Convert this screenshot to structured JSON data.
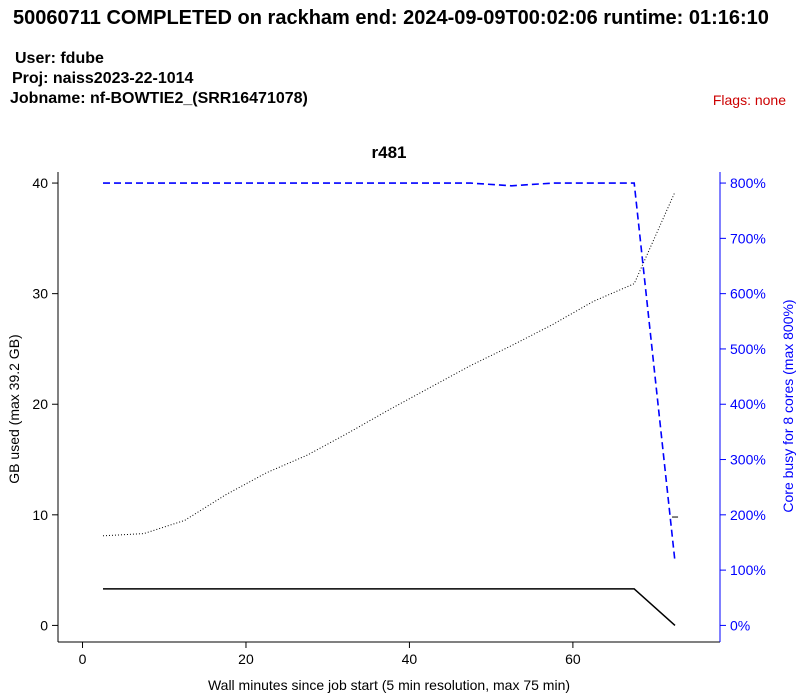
{
  "header": {
    "title": "50060711 COMPLETED on rackham  end: 2024-09-09T00:02:06  runtime: 01:16:10",
    "user": "User: fdube",
    "proj": "Proj: naiss2023-22-1014",
    "jobname": "Jobname: nf-BOWTIE2_(SRR16471078)",
    "flags": "Flags: none"
  },
  "colors": {
    "flags": "#cc0000",
    "cores": "#0000ff",
    "memory": "#000000",
    "max_memory": "#000000"
  },
  "chart_data": {
    "type": "line",
    "title": "r481",
    "xlabel": "Wall minutes since job start (5 min resolution, max 75 min)",
    "ylabel": "GB used (max 39.2 GB)",
    "y2label": "Core busy for 8 cores (max 800%)",
    "xlim": [
      -3,
      78
    ],
    "ylim": [
      -1.5,
      41
    ],
    "y2lim": [
      -30,
      820
    ],
    "xticks": [
      0,
      20,
      40,
      60
    ],
    "yticks": [
      0,
      10,
      20,
      30,
      40
    ],
    "y2ticks": [
      "0%",
      "100%",
      "200%",
      "300%",
      "400%",
      "500%",
      "600%",
      "700%",
      "800%"
    ],
    "grid": false,
    "series": [
      {
        "axis": "left",
        "style": "solid",
        "x": [
          2.5,
          7.5,
          12.5,
          17.5,
          22.5,
          27.5,
          32.5,
          37.5,
          42.5,
          47.5,
          52.5,
          57.5,
          62.5,
          67.5,
          72.5
        ],
        "values": [
          3.3,
          3.3,
          3.3,
          3.3,
          3.3,
          3.3,
          3.3,
          3.3,
          3.3,
          3.3,
          3.3,
          3.3,
          3.3,
          3.3,
          0
        ]
      },
      {
        "axis": "left",
        "style": "dotted",
        "x": [
          2.5,
          7.5,
          12.5,
          17.5,
          22.5,
          27.5,
          32.5,
          37.5,
          42.5,
          47.5,
          52.5,
          57.5,
          62.5,
          67.5,
          72.5
        ],
        "values": [
          8.1,
          8.3,
          9.5,
          11.8,
          13.8,
          15.4,
          17.4,
          19.5,
          21.5,
          23.5,
          25.3,
          27.2,
          29.3,
          30.9,
          39.2
        ]
      },
      {
        "axis": "right",
        "style": "dashed",
        "x": [
          2.5,
          7.5,
          12.5,
          17.5,
          22.5,
          27.5,
          32.5,
          37.5,
          42.5,
          47.5,
          52.5,
          57.5,
          62.5,
          67.5,
          72.5
        ],
        "values": [
          800,
          800,
          800,
          800,
          800,
          800,
          800,
          800,
          800,
          800,
          795,
          800,
          800,
          800,
          115
        ]
      }
    ],
    "annotations": [
      {
        "x": 72.5,
        "y": 9.8,
        "axis": "left",
        "text": "max memory tick"
      }
    ]
  }
}
